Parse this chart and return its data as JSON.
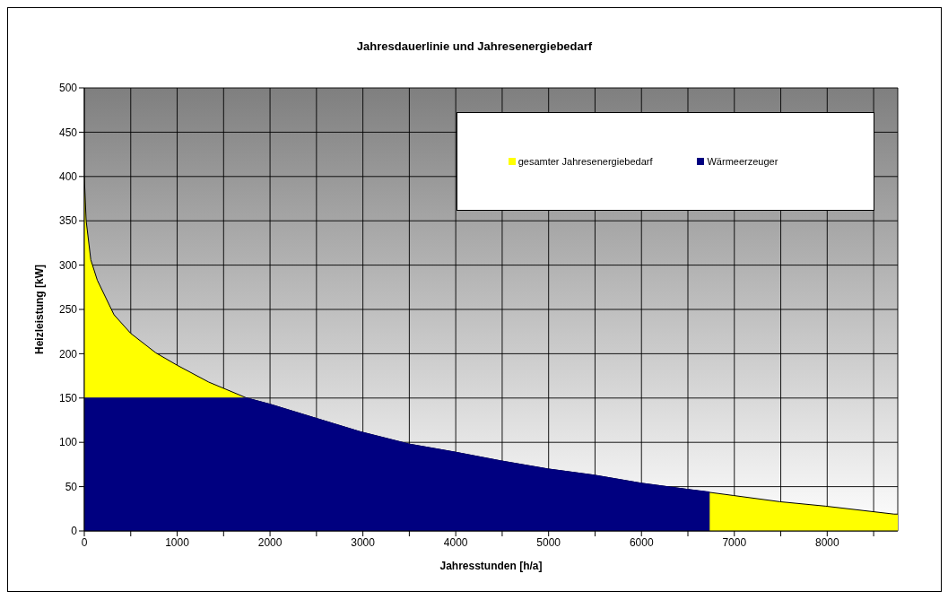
{
  "chart_data": {
    "type": "area",
    "title": "Jahresdauerlinie und Jahresenergiebedarf",
    "xlabel": "Jahresstunden [h/a]",
    "ylabel": "Heizleistung [kW]",
    "series": [
      {
        "name": "gesamter Jahresenergiebedarf",
        "color": "#ffff00",
        "x": [
          0,
          20,
          70,
          140,
          320,
          500,
          770,
          1000,
          1340,
          1750,
          2000,
          2500,
          2970,
          3500,
          3990,
          4490,
          4990,
          5490,
          5990,
          6490,
          6700,
          6990,
          7490,
          7980,
          8720,
          8760
        ],
        "values": [
          400,
          350,
          306,
          283,
          244,
          223,
          201,
          187,
          168,
          150,
          143,
          127,
          112,
          98,
          89,
          79,
          70,
          63,
          54,
          47,
          44,
          40,
          33,
          28,
          19,
          19
        ]
      },
      {
        "name": "Wärmeerzeuger",
        "color": "#000080",
        "x": [
          0,
          1750,
          2000,
          2500,
          2970,
          3500,
          3990,
          4490,
          4990,
          5490,
          5990,
          6490,
          6730,
          6730
        ],
        "values": [
          150,
          150,
          143,
          127,
          112,
          98,
          89,
          79,
          70,
          63,
          54,
          47,
          44,
          0
        ]
      }
    ],
    "xlim": [
      0,
      8760
    ],
    "xticks": [
      0,
      {
        "value": 500,
        "label": null
      },
      1000,
      {
        "value": 1500,
        "label": null
      },
      2000,
      {
        "value": 2500,
        "label": null
      },
      3000,
      {
        "value": 3500,
        "label": null
      },
      4000,
      {
        "value": 4500,
        "label": null
      },
      5000,
      {
        "value": 5500,
        "label": null
      },
      6000,
      {
        "value": 6500,
        "label": null
      },
      7000,
      {
        "value": 7500,
        "label": null
      },
      8000,
      {
        "value": 8500,
        "label": null
      }
    ],
    "ylim": [
      0,
      500
    ],
    "yticks": [
      0,
      50,
      100,
      150,
      200,
      250,
      300,
      350,
      400,
      450,
      500
    ],
    "grid": true,
    "legend": "top right"
  }
}
